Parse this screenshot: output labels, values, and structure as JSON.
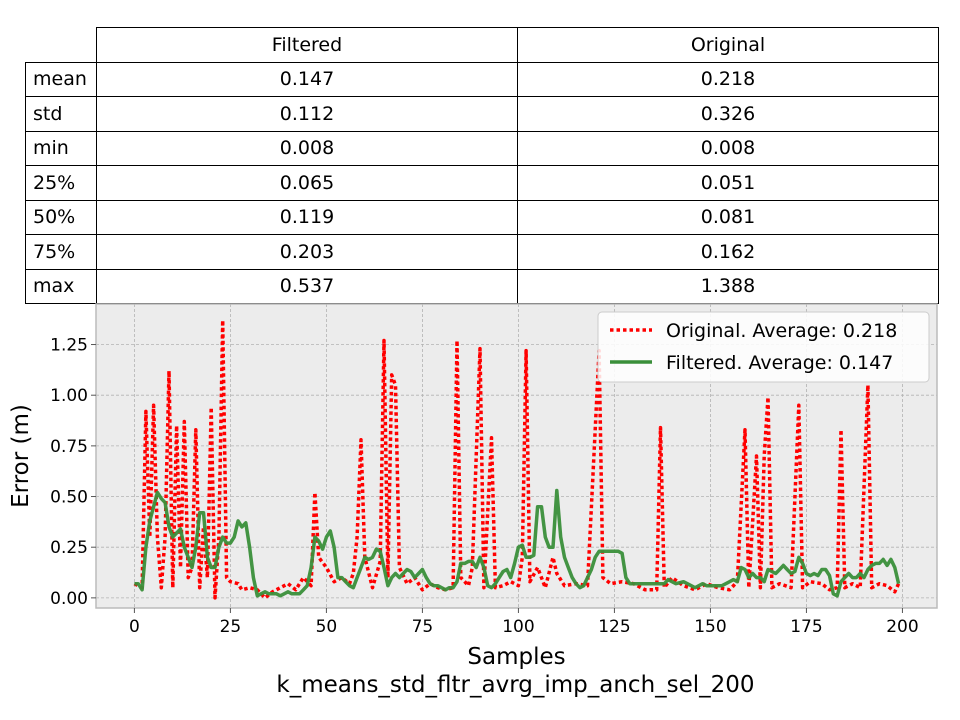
{
  "table": {
    "columns": [
      "Filtered",
      "Original"
    ],
    "rows": [
      {
        "label": "mean",
        "filtered": "0.147",
        "original": "0.218"
      },
      {
        "label": "std",
        "filtered": "0.112",
        "original": "0.326"
      },
      {
        "label": "min",
        "filtered": "0.008",
        "original": "0.008"
      },
      {
        "label": "25%",
        "filtered": "0.065",
        "original": "0.051"
      },
      {
        "label": "50%",
        "filtered": "0.119",
        "original": "0.081"
      },
      {
        "label": "75%",
        "filtered": "0.203",
        "original": "0.162"
      },
      {
        "label": "max",
        "filtered": "0.537",
        "original": "1.388"
      }
    ]
  },
  "chart_data": {
    "type": "line",
    "title": "",
    "xlabel": "Samples",
    "subtitle": "k_means_std_fltr_avrg_imp_anch_sel_200",
    "ylabel": "Error (m)",
    "xlim": [
      -10,
      209
    ],
    "ylim": [
      -0.05,
      1.45
    ],
    "xticks": [
      0,
      25,
      50,
      75,
      100,
      125,
      150,
      175,
      200
    ],
    "yticks": [
      0.0,
      0.25,
      0.5,
      0.75,
      1.0,
      1.25
    ],
    "ytick_labels": [
      "0.00",
      "0.25",
      "0.50",
      "0.75",
      "1.00",
      "1.25"
    ],
    "grid": true,
    "legend_position": "top-right",
    "background": "#ececec",
    "series": [
      {
        "name": "Original. Average: 0.218",
        "color": "#ff0000",
        "style": "dotted",
        "points": [
          [
            0,
            0.07
          ],
          [
            1,
            0.06
          ],
          [
            2,
            0.05
          ],
          [
            3,
            0.92
          ],
          [
            4,
            0.3
          ],
          [
            5,
            0.95
          ],
          [
            6,
            0.3
          ],
          [
            7,
            0.05
          ],
          [
            8,
            0.3
          ],
          [
            9,
            1.12
          ],
          [
            10,
            0.05
          ],
          [
            11,
            0.85
          ],
          [
            12,
            0.15
          ],
          [
            13,
            0.87
          ],
          [
            14,
            0.1
          ],
          [
            15,
            0.15
          ],
          [
            16,
            0.83
          ],
          [
            17,
            0.05
          ],
          [
            18,
            0.35
          ],
          [
            19,
            0.1
          ],
          [
            20,
            0.94
          ],
          [
            21,
            0.0
          ],
          [
            22,
            0.3
          ],
          [
            23,
            1.37
          ],
          [
            24,
            0.1
          ],
          [
            25,
            0.08
          ],
          [
            27,
            0.07
          ],
          [
            28,
            0.04
          ],
          [
            30,
            0.05
          ],
          [
            32,
            0.04
          ],
          [
            34,
            0.0
          ],
          [
            36,
            0.03
          ],
          [
            38,
            0.05
          ],
          [
            40,
            0.07
          ],
          [
            42,
            0.04
          ],
          [
            44,
            0.1
          ],
          [
            46,
            0.06
          ],
          [
            47,
            0.52
          ],
          [
            48,
            0.2
          ],
          [
            50,
            0.15
          ],
          [
            52,
            0.08
          ],
          [
            54,
            0.1
          ],
          [
            56,
            0.07
          ],
          [
            57,
            0.12
          ],
          [
            58,
            0.3
          ],
          [
            59,
            0.78
          ],
          [
            60,
            0.2
          ],
          [
            62,
            0.05
          ],
          [
            64,
            0.18
          ],
          [
            65,
            1.27
          ],
          [
            66,
            0.1
          ],
          [
            67,
            1.1
          ],
          [
            68,
            1.05
          ],
          [
            69,
            0.15
          ],
          [
            71,
            0.07
          ],
          [
            73,
            0.1
          ],
          [
            75,
            0.04
          ],
          [
            77,
            0.07
          ],
          [
            79,
            0.05
          ],
          [
            81,
            0.04
          ],
          [
            83,
            0.05
          ],
          [
            84,
            1.27
          ],
          [
            85,
            0.1
          ],
          [
            87,
            0.06
          ],
          [
            88,
            0.15
          ],
          [
            90,
            1.23
          ],
          [
            91,
            0.05
          ],
          [
            93,
            0.79
          ],
          [
            94,
            0.05
          ],
          [
            96,
            0.06
          ],
          [
            98,
            0.08
          ],
          [
            100,
            0.06
          ],
          [
            101,
            0.2
          ],
          [
            102,
            1.22
          ],
          [
            103,
            0.08
          ],
          [
            105,
            0.15
          ],
          [
            107,
            0.05
          ],
          [
            109,
            0.2
          ],
          [
            110,
            0.12
          ],
          [
            112,
            0.06
          ],
          [
            115,
            0.07
          ],
          [
            118,
            0.06
          ],
          [
            121,
            1.22
          ],
          [
            122,
            0.1
          ],
          [
            124,
            0.07
          ],
          [
            127,
            0.08
          ],
          [
            130,
            0.07
          ],
          [
            133,
            0.04
          ],
          [
            136,
            0.04
          ],
          [
            137,
            0.84
          ],
          [
            138,
            0.05
          ],
          [
            140,
            0.1
          ],
          [
            143,
            0.06
          ],
          [
            146,
            0.04
          ],
          [
            149,
            0.07
          ],
          [
            152,
            0.05
          ],
          [
            155,
            0.04
          ],
          [
            157,
            0.08
          ],
          [
            159,
            0.83
          ],
          [
            160,
            0.05
          ],
          [
            162,
            0.7
          ],
          [
            163,
            0.05
          ],
          [
            164,
            0.7
          ],
          [
            165,
            0.99
          ],
          [
            166,
            0.05
          ],
          [
            168,
            0.07
          ],
          [
            171,
            0.05
          ],
          [
            173,
            0.95
          ],
          [
            174,
            0.05
          ],
          [
            176,
            0.08
          ],
          [
            179,
            0.07
          ],
          [
            181,
            0.04
          ],
          [
            183,
            0.05
          ],
          [
            184,
            0.83
          ],
          [
            185,
            0.05
          ],
          [
            187,
            0.07
          ],
          [
            189,
            0.05
          ],
          [
            191,
            1.05
          ],
          [
            192,
            0.05
          ],
          [
            194,
            0.07
          ],
          [
            196,
            0.06
          ],
          [
            198,
            0.03
          ],
          [
            199,
            0.07
          ]
        ]
      },
      {
        "name": "Filtered. Average: 0.147",
        "color": "#3a8f3a",
        "style": "solid",
        "points": [
          [
            0,
            0.07
          ],
          [
            1,
            0.07
          ],
          [
            2,
            0.04
          ],
          [
            3,
            0.25
          ],
          [
            4,
            0.38
          ],
          [
            5,
            0.45
          ],
          [
            6,
            0.52
          ],
          [
            7,
            0.49
          ],
          [
            8,
            0.47
          ],
          [
            9,
            0.35
          ],
          [
            10,
            0.3
          ],
          [
            11,
            0.32
          ],
          [
            12,
            0.34
          ],
          [
            13,
            0.25
          ],
          [
            14,
            0.2
          ],
          [
            15,
            0.15
          ],
          [
            16,
            0.25
          ],
          [
            17,
            0.42
          ],
          [
            18,
            0.42
          ],
          [
            19,
            0.2
          ],
          [
            20,
            0.15
          ],
          [
            21,
            0.15
          ],
          [
            22,
            0.25
          ],
          [
            23,
            0.3
          ],
          [
            24,
            0.27
          ],
          [
            25,
            0.27
          ],
          [
            26,
            0.3
          ],
          [
            27,
            0.38
          ],
          [
            28,
            0.35
          ],
          [
            29,
            0.37
          ],
          [
            30,
            0.25
          ],
          [
            31,
            0.1
          ],
          [
            32,
            0.01
          ],
          [
            33,
            0.02
          ],
          [
            34,
            0.03
          ],
          [
            35,
            0.02
          ],
          [
            36,
            0.02
          ],
          [
            37,
            0.02
          ],
          [
            38,
            0.01
          ],
          [
            39,
            0.02
          ],
          [
            40,
            0.03
          ],
          [
            41,
            0.02
          ],
          [
            42,
            0.02
          ],
          [
            43,
            0.02
          ],
          [
            44,
            0.04
          ],
          [
            45,
            0.06
          ],
          [
            46,
            0.15
          ],
          [
            47,
            0.3
          ],
          [
            48,
            0.28
          ],
          [
            49,
            0.24
          ],
          [
            50,
            0.3
          ],
          [
            51,
            0.33
          ],
          [
            52,
            0.25
          ],
          [
            53,
            0.1
          ],
          [
            54,
            0.1
          ],
          [
            55,
            0.08
          ],
          [
            56,
            0.06
          ],
          [
            57,
            0.05
          ],
          [
            58,
            0.1
          ],
          [
            59,
            0.15
          ],
          [
            60,
            0.2
          ],
          [
            61,
            0.19
          ],
          [
            62,
            0.2
          ],
          [
            63,
            0.24
          ],
          [
            64,
            0.23
          ],
          [
            65,
            0.15
          ],
          [
            66,
            0.06
          ],
          [
            67,
            0.1
          ],
          [
            68,
            0.12
          ],
          [
            69,
            0.1
          ],
          [
            70,
            0.12
          ],
          [
            71,
            0.14
          ],
          [
            72,
            0.13
          ],
          [
            73,
            0.1
          ],
          [
            74,
            0.12
          ],
          [
            75,
            0.14
          ],
          [
            76,
            0.1
          ],
          [
            77,
            0.07
          ],
          [
            78,
            0.06
          ],
          [
            79,
            0.06
          ],
          [
            80,
            0.05
          ],
          [
            81,
            0.04
          ],
          [
            82,
            0.05
          ],
          [
            83,
            0.05
          ],
          [
            84,
            0.08
          ],
          [
            85,
            0.17
          ],
          [
            86,
            0.17
          ],
          [
            87,
            0.18
          ],
          [
            88,
            0.18
          ],
          [
            89,
            0.15
          ],
          [
            90,
            0.2
          ],
          [
            91,
            0.15
          ],
          [
            92,
            0.06
          ],
          [
            93,
            0.05
          ],
          [
            94,
            0.07
          ],
          [
            95,
            0.1
          ],
          [
            96,
            0.13
          ],
          [
            97,
            0.14
          ],
          [
            98,
            0.1
          ],
          [
            99,
            0.17
          ],
          [
            100,
            0.25
          ],
          [
            101,
            0.26
          ],
          [
            102,
            0.2
          ],
          [
            103,
            0.2
          ],
          [
            104,
            0.21
          ],
          [
            105,
            0.45
          ],
          [
            106,
            0.45
          ],
          [
            107,
            0.3
          ],
          [
            108,
            0.25
          ],
          [
            109,
            0.25
          ],
          [
            110,
            0.53
          ],
          [
            111,
            0.3
          ],
          [
            112,
            0.2
          ],
          [
            113,
            0.15
          ],
          [
            114,
            0.1
          ],
          [
            115,
            0.07
          ],
          [
            116,
            0.05
          ],
          [
            117,
            0.06
          ],
          [
            118,
            0.1
          ],
          [
            119,
            0.14
          ],
          [
            120,
            0.2
          ],
          [
            121,
            0.23
          ],
          [
            122,
            0.23
          ],
          [
            124,
            0.23
          ],
          [
            126,
            0.23
          ],
          [
            127,
            0.22
          ],
          [
            128,
            0.1
          ],
          [
            129,
            0.07
          ],
          [
            131,
            0.07
          ],
          [
            135,
            0.07
          ],
          [
            138,
            0.07
          ],
          [
            139,
            0.09
          ],
          [
            140,
            0.08
          ],
          [
            141,
            0.07
          ],
          [
            143,
            0.08
          ],
          [
            144,
            0.07
          ],
          [
            145,
            0.06
          ],
          [
            146,
            0.05
          ],
          [
            147,
            0.06
          ],
          [
            148,
            0.07
          ],
          [
            149,
            0.06
          ],
          [
            150,
            0.06
          ],
          [
            151,
            0.06
          ],
          [
            153,
            0.06
          ],
          [
            154,
            0.07
          ],
          [
            155,
            0.08
          ],
          [
            156,
            0.09
          ],
          [
            157,
            0.08
          ],
          [
            158,
            0.15
          ],
          [
            159,
            0.14
          ],
          [
            160,
            0.1
          ],
          [
            161,
            0.12
          ],
          [
            162,
            0.1
          ],
          [
            163,
            0.1
          ],
          [
            164,
            0.08
          ],
          [
            165,
            0.14
          ],
          [
            166,
            0.13
          ],
          [
            167,
            0.12
          ],
          [
            168,
            0.14
          ],
          [
            169,
            0.16
          ],
          [
            170,
            0.14
          ],
          [
            171,
            0.12
          ],
          [
            172,
            0.13
          ],
          [
            173,
            0.2
          ],
          [
            174,
            0.17
          ],
          [
            175,
            0.12
          ],
          [
            176,
            0.11
          ],
          [
            177,
            0.12
          ],
          [
            178,
            0.11
          ],
          [
            179,
            0.14
          ],
          [
            180,
            0.14
          ],
          [
            181,
            0.11
          ],
          [
            182,
            0.02
          ],
          [
            183,
            0.01
          ],
          [
            184,
            0.08
          ],
          [
            185,
            0.1
          ],
          [
            186,
            0.12
          ],
          [
            187,
            0.1
          ],
          [
            188,
            0.1
          ],
          [
            189,
            0.12
          ],
          [
            190,
            0.1
          ],
          [
            191,
            0.14
          ],
          [
            192,
            0.16
          ],
          [
            193,
            0.17
          ],
          [
            194,
            0.17
          ],
          [
            195,
            0.19
          ],
          [
            196,
            0.16
          ],
          [
            197,
            0.19
          ],
          [
            198,
            0.15
          ],
          [
            199,
            0.07
          ]
        ]
      }
    ]
  }
}
